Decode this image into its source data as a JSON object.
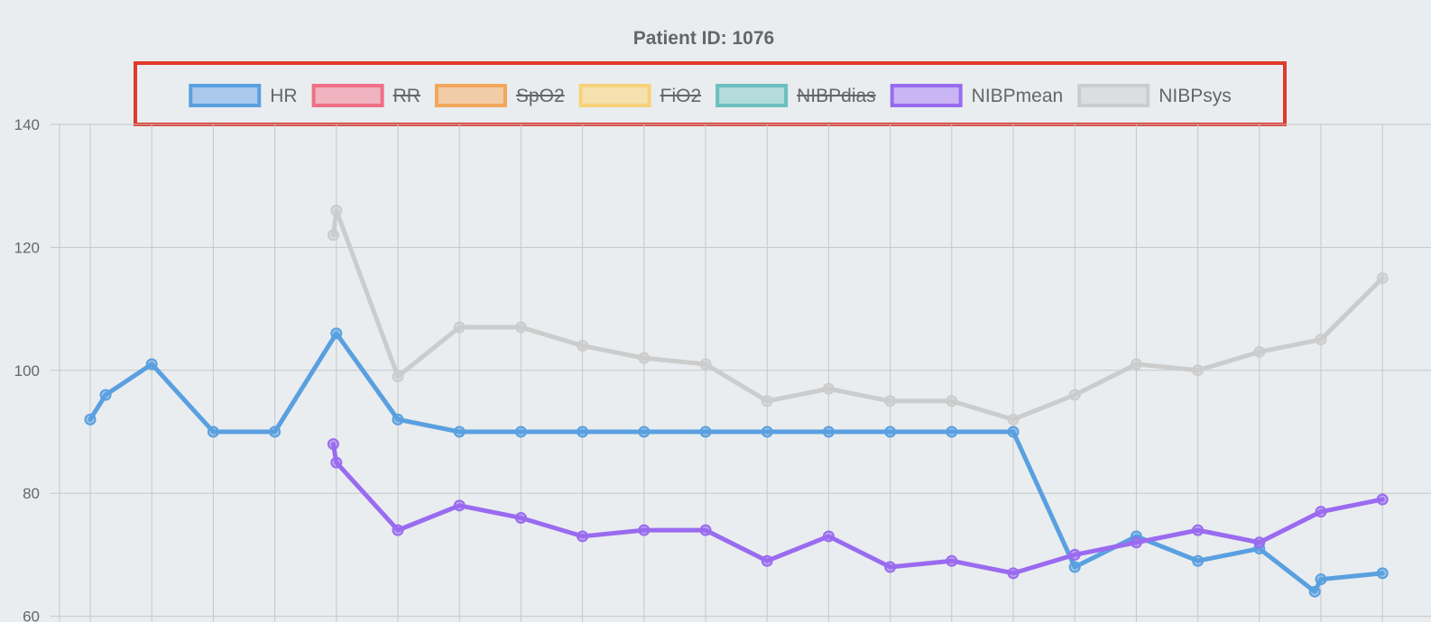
{
  "chart_data": {
    "type": "line",
    "title": "Patient ID: 1076",
    "xlabel": "",
    "ylabel": "",
    "ylim": [
      60,
      140
    ],
    "yticks": [
      "60",
      "80",
      "100",
      "120",
      "140"
    ],
    "grid": true,
    "legend_position": "top",
    "legend_highlighted": true,
    "legend_highlight_color": "#e0392b",
    "legend": [
      {
        "name": "HR",
        "color": "#5aa0e0",
        "fill": "#a9c8ec",
        "hidden": false
      },
      {
        "name": "RR",
        "color": "#ef6f86",
        "fill": "#f0b3c0",
        "hidden": true
      },
      {
        "name": "SpO2",
        "color": "#f2a65a",
        "fill": "#f1cca6",
        "hidden": true
      },
      {
        "name": "FiO2",
        "color": "#f7d27a",
        "fill": "#f4e1ae",
        "hidden": true
      },
      {
        "name": "NIBPdias",
        "color": "#6cbfbf",
        "fill": "#b4dcdc",
        "hidden": true
      },
      {
        "name": "NIBPmean",
        "color": "#9a6bf0",
        "fill": "#c9b4f4",
        "hidden": false
      },
      {
        "name": "NIBPsys",
        "color": "#cccccc",
        "fill": "#dcdde0",
        "hidden": false
      }
    ],
    "x": [
      0,
      0.25,
      1,
      2,
      3,
      3.95,
      4,
      5,
      6,
      7,
      8,
      9,
      10,
      11,
      12,
      13,
      14,
      15,
      16,
      17,
      18,
      19,
      19.9,
      20,
      21
    ],
    "series": [
      {
        "name": "HR",
        "color": "#5aa0e0",
        "values": [
          92,
          96,
          101,
          90,
          90,
          null,
          106,
          92,
          90,
          90,
          90,
          90,
          90,
          90,
          90,
          90,
          90,
          90,
          68,
          73,
          69,
          71,
          64,
          66,
          67
        ]
      },
      {
        "name": "NIBPmean",
        "color": "#9a6bf0",
        "values": [
          null,
          null,
          null,
          null,
          null,
          88,
          85,
          74,
          78,
          76,
          73,
          74,
          74,
          69,
          73,
          68,
          69,
          67,
          70,
          72,
          74,
          72,
          null,
          77,
          79
        ]
      },
      {
        "name": "NIBPsys",
        "color": "#cccccc",
        "values": [
          null,
          null,
          null,
          null,
          null,
          122,
          126,
          99,
          107,
          107,
          104,
          102,
          101,
          95,
          97,
          95,
          95,
          92,
          96,
          101,
          100,
          103,
          null,
          105,
          115
        ]
      }
    ]
  }
}
